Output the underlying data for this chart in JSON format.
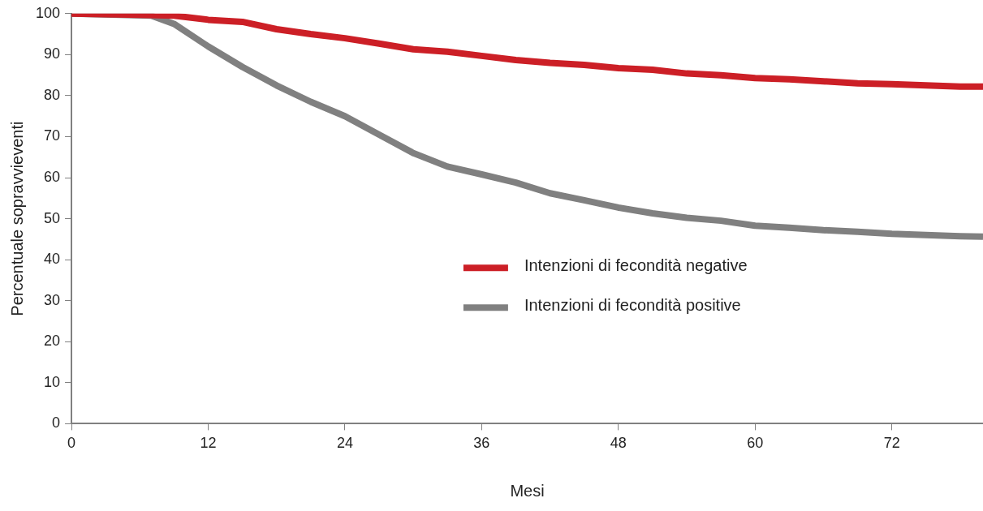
{
  "chart_data": {
    "type": "line",
    "xlabel": "Mesi",
    "ylabel": "Percentuale sopravvieventi",
    "x": [
      0,
      6,
      9,
      12,
      15,
      18,
      21,
      24,
      27,
      30,
      33,
      36,
      39,
      42,
      45,
      48,
      51,
      54,
      57,
      60,
      63,
      66,
      69,
      72,
      75,
      78,
      80
    ],
    "series": [
      {
        "name": "Intenzioni di fecondità negative",
        "color": "#cc1f26",
        "values": [
          100,
          99.7,
          99.5,
          98.5,
          98,
          96.2,
          95,
          94,
          92.7,
          91.3,
          90.7,
          89.7,
          88.7,
          88,
          87.5,
          86.7,
          86.3,
          85.4,
          85,
          84.3,
          84,
          83.5,
          83,
          82.8,
          82.5,
          82.2,
          82.2
        ]
      },
      {
        "name": "Intenzioni di fecondità positive",
        "color": "#808080",
        "x": [
          0,
          7,
          9,
          12,
          15,
          18,
          21,
          24,
          27,
          30,
          33,
          36,
          39,
          42,
          45,
          48,
          51,
          54,
          57,
          60,
          63,
          66,
          69,
          72,
          75,
          78,
          80
        ],
        "values": [
          100,
          99.5,
          97.5,
          92,
          87,
          82.5,
          78.5,
          75,
          70.5,
          66,
          62.7,
          60.8,
          58.8,
          56.2,
          54.5,
          52.7,
          51.3,
          50.2,
          49.5,
          48.3,
          47.8,
          47.2,
          46.8,
          46.3,
          46,
          45.7,
          45.6
        ]
      }
    ],
    "xlim": [
      0,
      80
    ],
    "xticks": [
      0,
      12,
      24,
      36,
      48,
      60,
      72
    ],
    "ylim": [
      0,
      100
    ],
    "yticks": [
      0,
      10,
      20,
      30,
      40,
      50,
      60,
      70,
      80,
      90,
      100
    ],
    "grid": false,
    "legend": "right",
    "marker": "none",
    "line_style": "solid"
  }
}
